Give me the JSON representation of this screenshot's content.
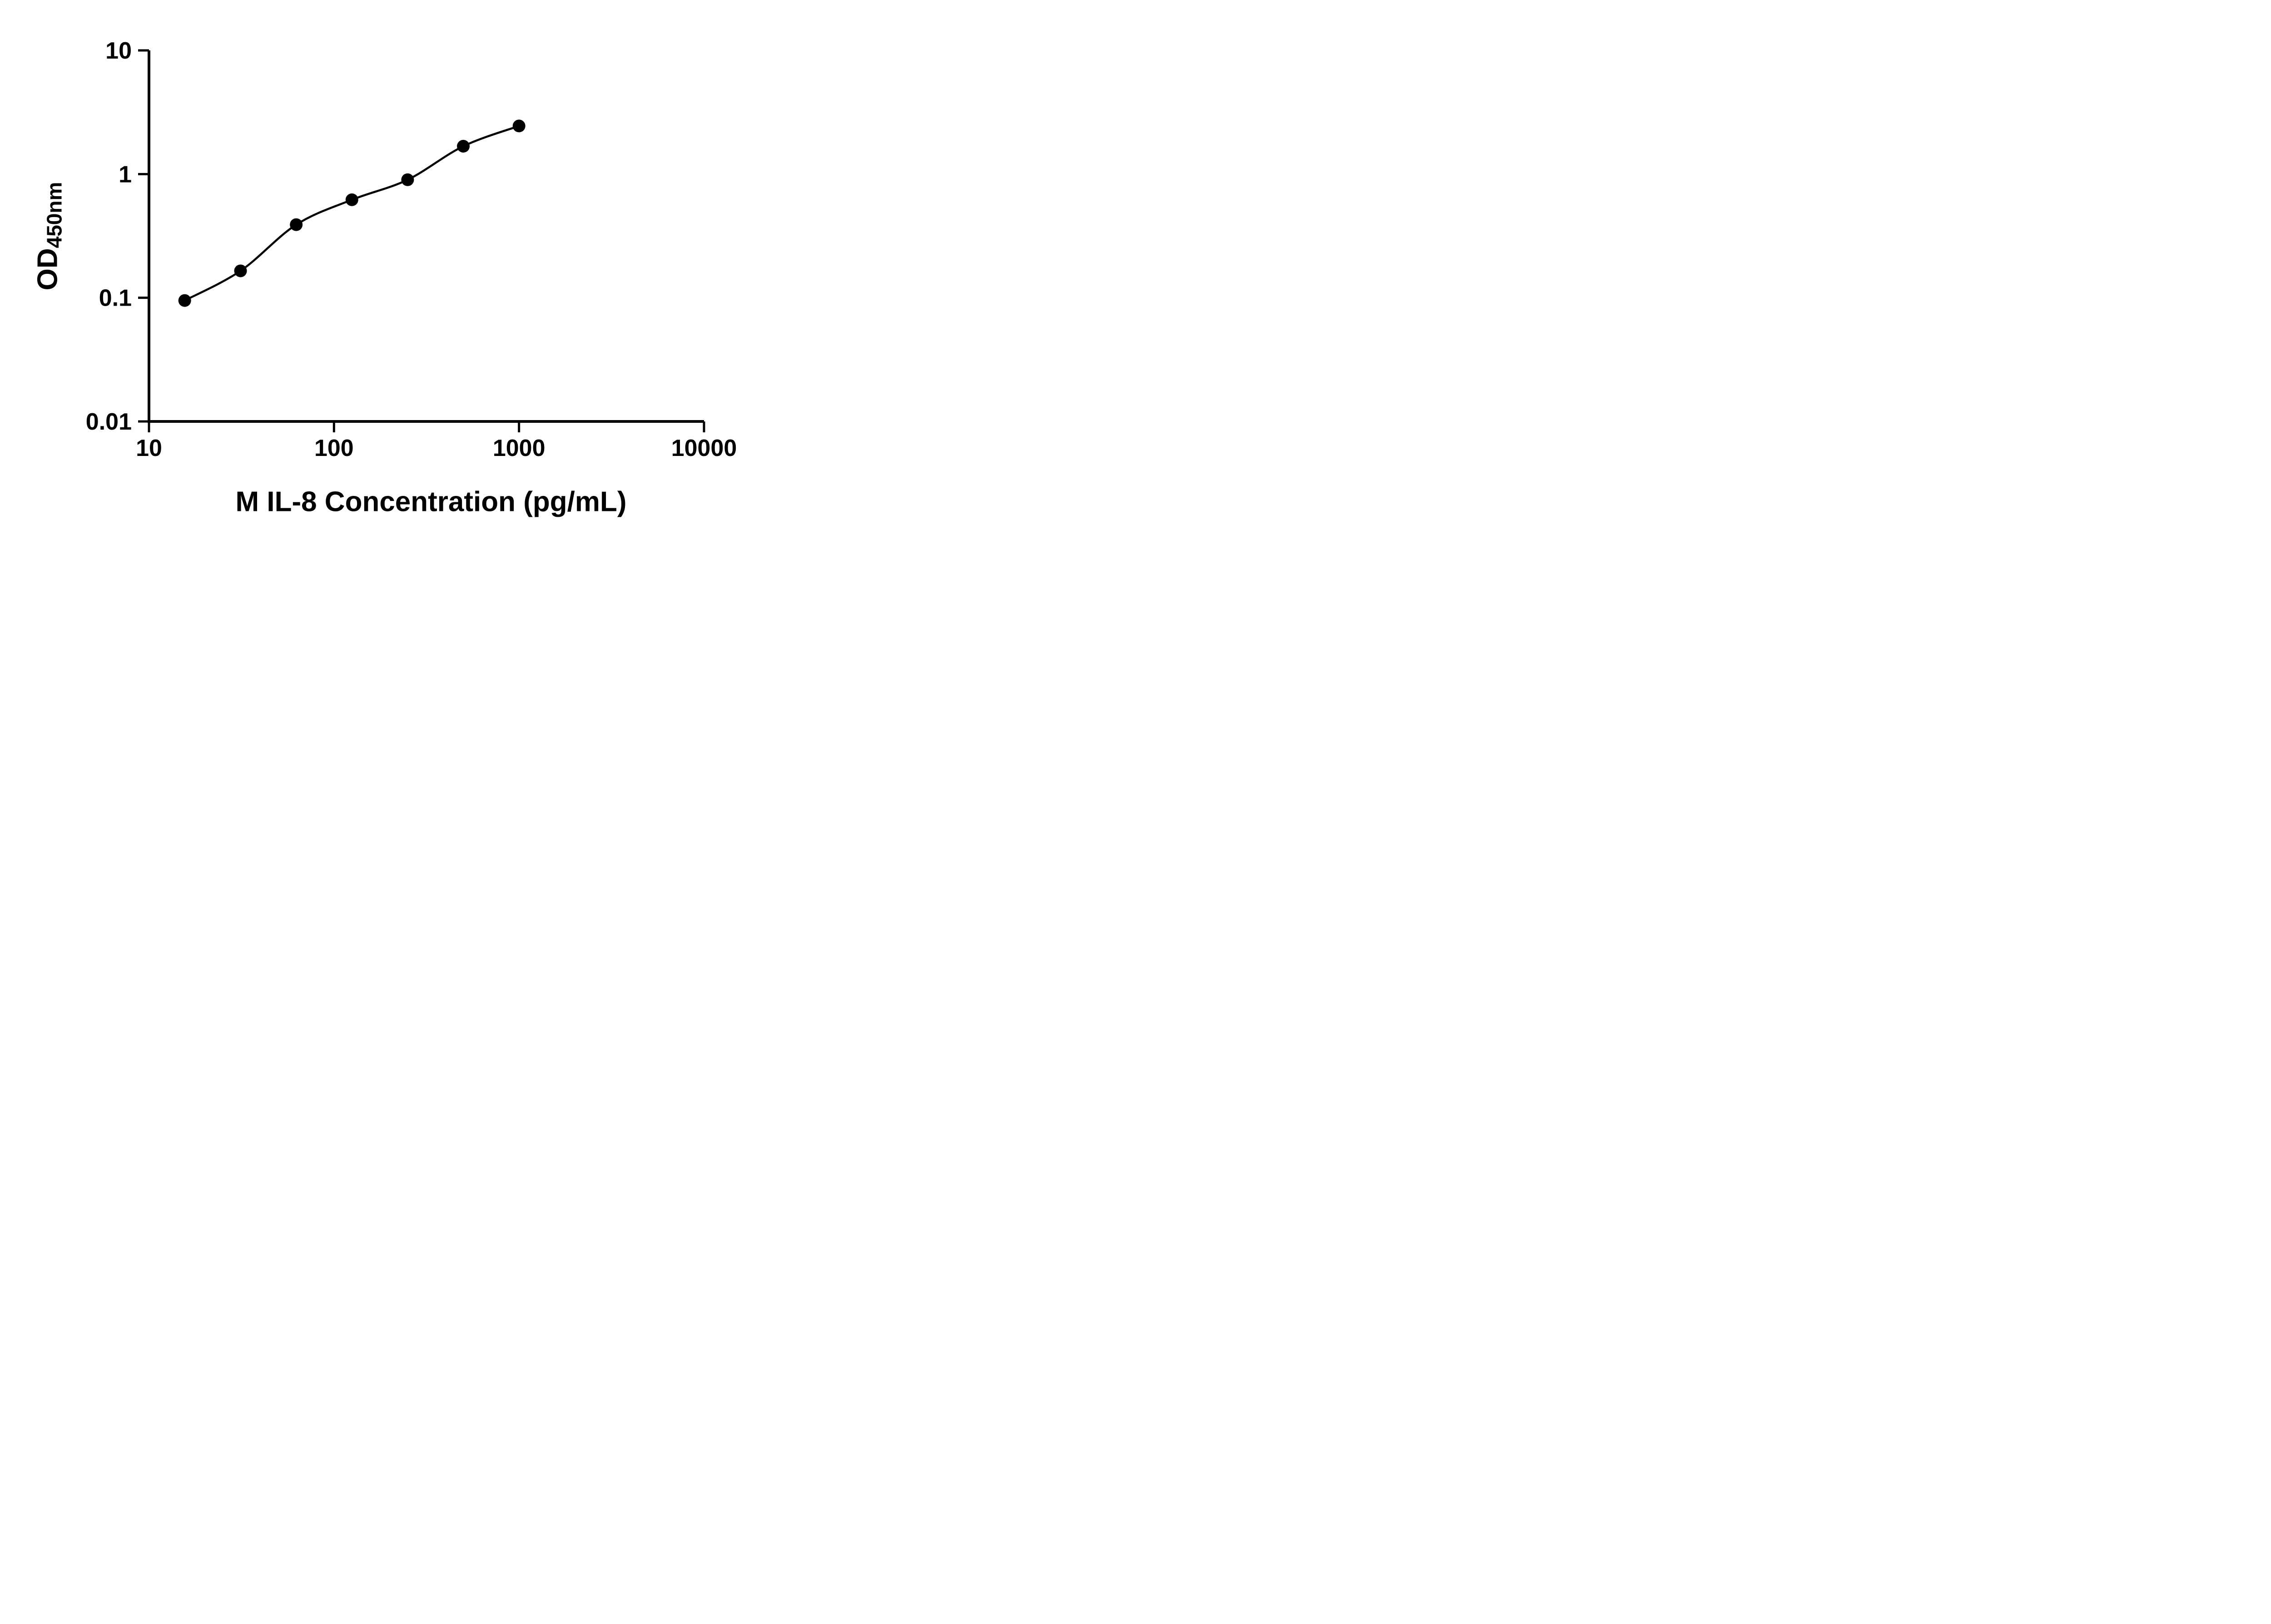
{
  "chart_data": {
    "type": "scatter",
    "title": "",
    "xlabel": "M IL-8 Concentration (pg/mL)",
    "ylabel_main": "OD",
    "ylabel_sub": "450nm",
    "x_scale": "log10",
    "y_scale": "log10",
    "xlim": [
      10,
      10000
    ],
    "ylim": [
      0.01,
      10
    ],
    "x_ticks": [
      10,
      100,
      1000,
      10000
    ],
    "x_tick_labels": [
      "10",
      "100",
      "1000",
      "10000"
    ],
    "y_ticks": [
      0.01,
      0.1,
      1,
      10
    ],
    "y_tick_labels": [
      "0.01",
      "0.1",
      "1",
      "10"
    ],
    "grid": false,
    "legend": false,
    "axis_color": "#000000",
    "marker_color": "#000000",
    "line_color": "#000000",
    "series": [
      {
        "x": [
          15.6,
          31.25,
          62.5,
          125,
          250,
          500,
          1000
        ],
        "y": [
          0.095,
          0.165,
          0.39,
          0.62,
          0.9,
          1.68,
          2.45
        ]
      }
    ]
  }
}
